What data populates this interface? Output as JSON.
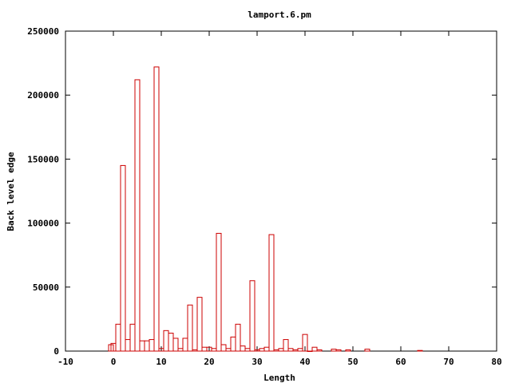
{
  "chart_data": {
    "type": "bar",
    "title": "lamport.6.pm",
    "xlabel": "Length",
    "ylabel": "Back level edge",
    "xlim": [
      -10,
      80
    ],
    "ylim": [
      0,
      250000
    ],
    "xticks": [
      -10,
      0,
      10,
      20,
      30,
      40,
      50,
      60,
      70,
      80
    ],
    "yticks": [
      0,
      50000,
      100000,
      150000,
      200000,
      250000
    ],
    "grid": false,
    "legend": "none",
    "bar_color": "#cc0000",
    "bar_width": 1,
    "series": [
      {
        "x": [
          -0.5,
          0,
          1,
          2,
          3,
          4,
          5,
          6,
          7,
          8,
          9,
          10,
          11,
          12,
          13,
          14,
          15,
          16,
          17,
          18,
          19,
          20,
          21,
          22,
          23,
          24,
          25,
          26,
          27,
          28,
          29,
          30,
          31,
          32,
          33,
          34,
          35,
          36,
          37,
          38,
          39,
          40,
          41,
          42,
          43,
          46,
          47,
          49,
          53,
          64
        ],
        "values": [
          5000,
          6000,
          21000,
          145000,
          9000,
          21000,
          212000,
          8000,
          8000,
          9000,
          222000,
          2000,
          16000,
          14000,
          10000,
          2000,
          10000,
          36000,
          1000,
          42000,
          3000,
          3000,
          2000,
          92000,
          5000,
          2000,
          11000,
          21000,
          4000,
          2000,
          55000,
          1000,
          2000,
          3000,
          91000,
          1000,
          2000,
          9000,
          2000,
          1000,
          2000,
          13000,
          0,
          3000,
          1000,
          1500,
          1000,
          1000,
          1500,
          500
        ]
      }
    ]
  }
}
